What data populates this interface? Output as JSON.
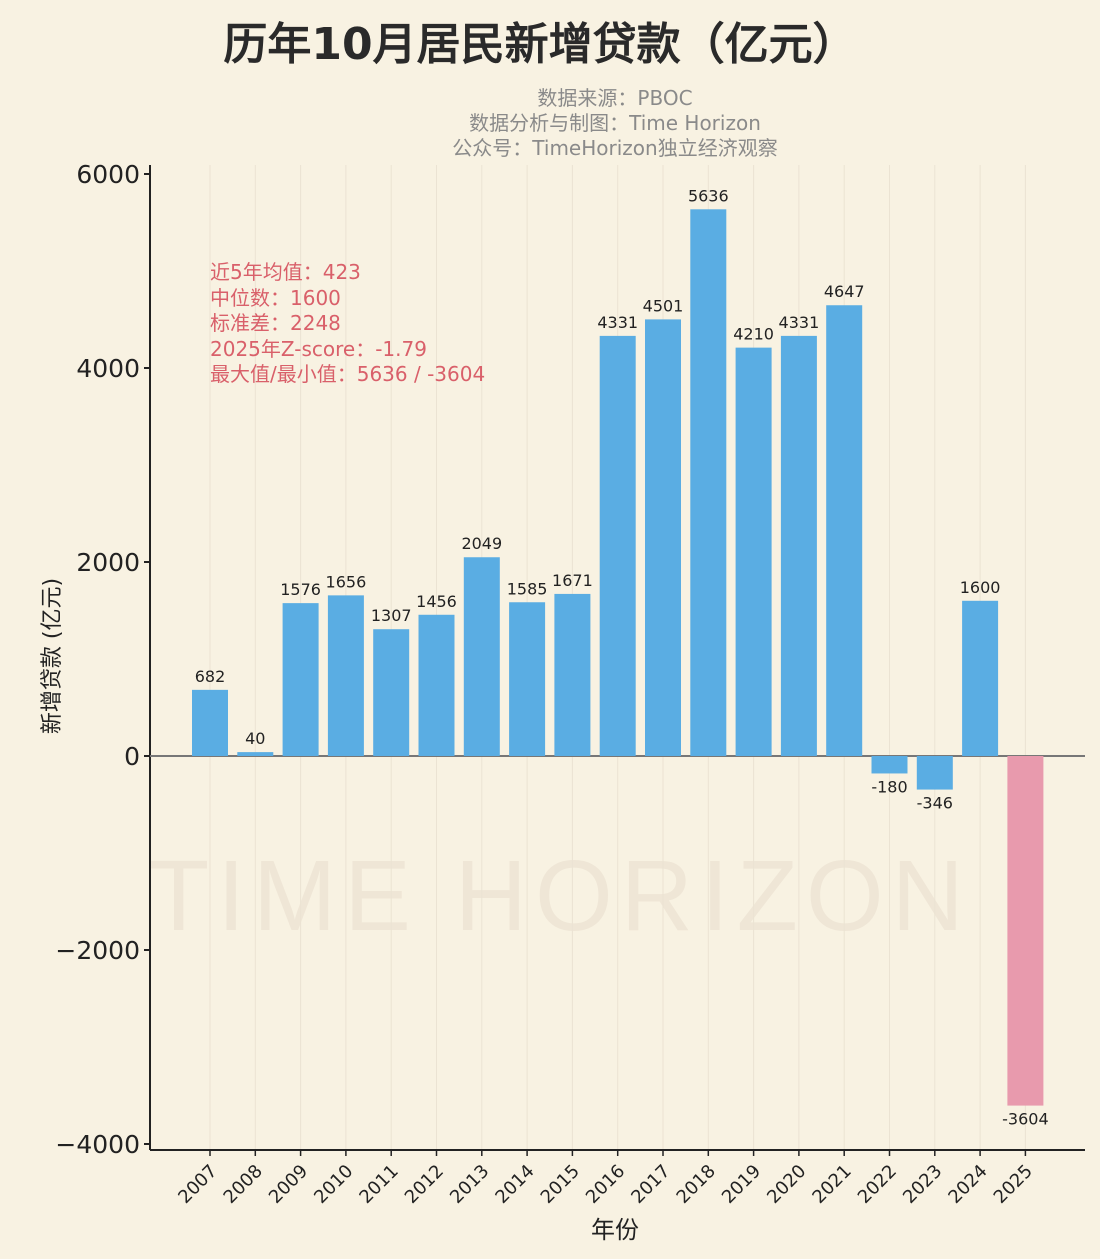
{
  "chart_data": {
    "type": "bar",
    "title": "历年10月居民新增贷款（亿元）",
    "subtitles": [
      "数据来源：PBOC",
      "数据分析与制图：Time Horizon",
      "公众号：TimeHorizon独立经济观察"
    ],
    "xlabel": "年份",
    "ylabel": "新增贷款 (亿元)",
    "ylim": [
      -4000,
      6000
    ],
    "yticks": [
      -4000,
      -2000,
      0,
      2000,
      4000,
      6000
    ],
    "ytick_labels": [
      "−4000",
      "−2000",
      "0",
      "2000",
      "4000",
      "6000"
    ],
    "categories": [
      "2007",
      "2008",
      "2009",
      "2010",
      "2011",
      "2012",
      "2013",
      "2014",
      "2015",
      "2016",
      "2017",
      "2018",
      "2019",
      "2020",
      "2021",
      "2022",
      "2023",
      "2024",
      "2025"
    ],
    "values": [
      682,
      40,
      1576,
      1656,
      1307,
      1456,
      2049,
      1585,
      1671,
      4331,
      4501,
      5636,
      4210,
      4331,
      4647,
      -180,
      -346,
      1600,
      -3604
    ],
    "colors": {
      "default": "#5aade3",
      "highlight": "#e89aad",
      "highlight_category": "2025"
    },
    "grid": "vertical lines",
    "annotations": [
      "近5年均值：423",
      "中位数：1600",
      "标准差：2248",
      "2025年Z-score：-1.79",
      "最大值/最小值：5636 / -3604"
    ],
    "watermark": "TIME HORIZON"
  }
}
